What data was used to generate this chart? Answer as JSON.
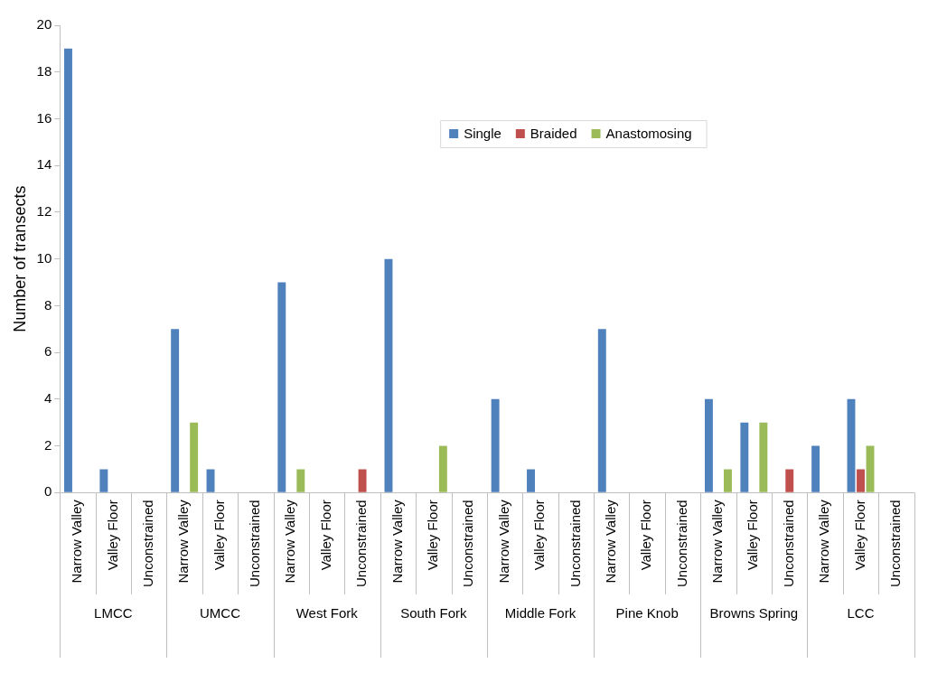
{
  "chart_data": {
    "type": "bar",
    "ylabel": "Number of transects",
    "categories": [
      "Narrow Valley",
      "Valley Floor",
      "Unconstrained",
      "Narrow Valley",
      "Valley Floor",
      "Unconstrained",
      "Narrow Valley",
      "Valley Floor",
      "Unconstrained",
      "Narrow Valley",
      "Valley Floor",
      "Unconstrained",
      "Narrow Valley",
      "Valley Floor",
      "Unconstrained",
      "Narrow Valley",
      "Valley Floor",
      "Unconstrained",
      "Narrow Valley",
      "Valley Floor",
      "Unconstrained",
      "Narrow Valley",
      "Valley Floor",
      "Unconstrained"
    ],
    "annotations": [
      "LMCC",
      "UMCC",
      "West Fork",
      "South Fork",
      "Middle Fork",
      "Pine Knob",
      "Browns Spring",
      "LCC"
    ],
    "series": [
      {
        "name": "Single",
        "color": "#4f81bd",
        "values": [
          19,
          1,
          0,
          7,
          1,
          0,
          9,
          0,
          0,
          10,
          0,
          0,
          4,
          1,
          0,
          7,
          0,
          0,
          4,
          3,
          0,
          2,
          4,
          0
        ]
      },
      {
        "name": "Braided",
        "color": "#c0504d",
        "values": [
          0,
          0,
          0,
          0,
          0,
          0,
          0,
          0,
          1,
          0,
          0,
          0,
          0,
          0,
          0,
          0,
          0,
          0,
          0,
          0,
          1,
          0,
          1,
          0
        ]
      },
      {
        "name": "Anastomosing",
        "color": "#9bbb59",
        "values": [
          0,
          0,
          0,
          3,
          0,
          0,
          1,
          0,
          0,
          0,
          2,
          0,
          0,
          0,
          0,
          0,
          0,
          0,
          1,
          3,
          0,
          0,
          2,
          0
        ]
      }
    ],
    "ylim": [
      0,
      20
    ],
    "yticks": [
      0,
      2,
      4,
      6,
      8,
      10,
      12,
      14,
      16,
      18,
      20
    ],
    "grid": false,
    "legend": "top right"
  }
}
